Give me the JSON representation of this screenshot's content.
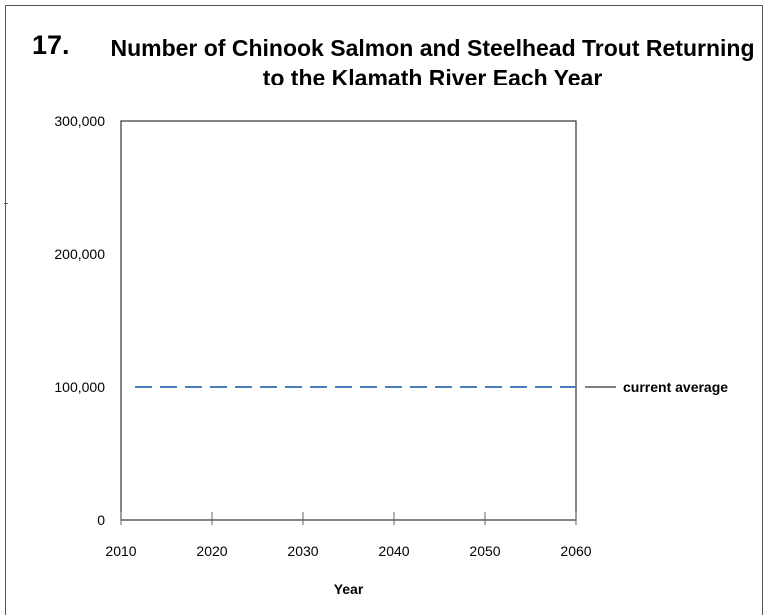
{
  "question_number": "17.",
  "chart_data": {
    "type": "line",
    "title": "Number of Chinook Salmon and Steelhead Trout Returning to the Klamath River Each Year",
    "xlabel": "Year",
    "ylabel": "",
    "xlim": [
      2010,
      2060
    ],
    "ylim": [
      0,
      300000
    ],
    "x_ticks": [
      2010,
      2020,
      2030,
      2040,
      2050,
      2060
    ],
    "x_tick_labels": [
      "2010",
      "2020",
      "2030",
      "2040",
      "2050",
      "2060"
    ],
    "y_ticks": [
      0,
      100000,
      200000,
      300000
    ],
    "y_tick_labels": [
      "0",
      "100,000",
      "200,000",
      "300,000"
    ],
    "grid": false,
    "series": [],
    "reference_lines": [
      {
        "label": "current average",
        "y": 100000,
        "style": "dashed",
        "color": "#4a7ebb"
      }
    ]
  }
}
